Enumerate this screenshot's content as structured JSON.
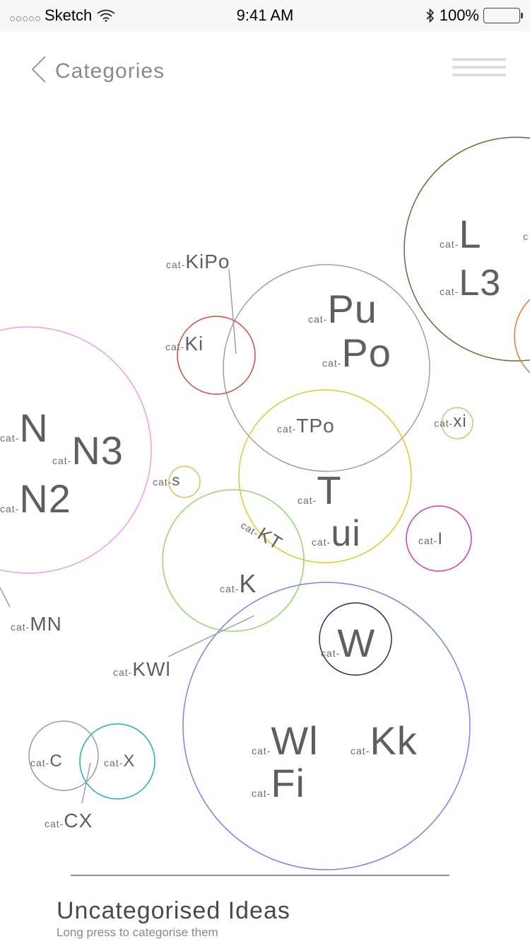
{
  "status_bar": {
    "carrier": "Sketch",
    "time": "9:41 AM",
    "battery": "100%"
  },
  "header": {
    "title": "Categories"
  },
  "bubbles": [
    {
      "id": "L",
      "color": "#4a7a2e"
    },
    {
      "id": "L-edge",
      "color": "#e07b39"
    },
    {
      "id": "Pu",
      "color": "#a0a0a0"
    },
    {
      "id": "Ki",
      "color": "#d6493a"
    },
    {
      "id": "N",
      "color": "#ef9bf0"
    },
    {
      "id": "T",
      "color": "#e3c82b"
    },
    {
      "id": "xi",
      "color": "#9fe07a"
    },
    {
      "id": "s",
      "color": "#e3c05a"
    },
    {
      "id": "I",
      "color": "#d637b0"
    },
    {
      "id": "K",
      "color": "#8bdc6a"
    },
    {
      "id": "W",
      "color": "#2b2b6b"
    },
    {
      "id": "Wl",
      "color": "#7286f0"
    },
    {
      "id": "C",
      "color": "#9a9a9a"
    },
    {
      "id": "X",
      "color": "#16b3b3"
    }
  ],
  "labels": {
    "prefix": "cat-",
    "L": "L",
    "L3": "L3",
    "L_cut": "c",
    "KiPo": "KiPo",
    "Ki": "Ki",
    "Pu": "Pu",
    "Po": "Po",
    "N": "N",
    "N3": "N3",
    "N2": "N2",
    "TPo": "TPo",
    "xi": "xi",
    "s": "s",
    "T": "T",
    "ui": "ui",
    "I": "I",
    "KT": "KT",
    "K": "K",
    "MN": "MN",
    "KWl": "KWl",
    "W": "W",
    "Wl": "Wl",
    "Kk": "Kk",
    "Fi": "Fi",
    "C": "C",
    "X": "X",
    "CX": "CX"
  },
  "footer": {
    "title": "Uncategorised Ideas",
    "subtitle": "Long press to categorise them"
  }
}
